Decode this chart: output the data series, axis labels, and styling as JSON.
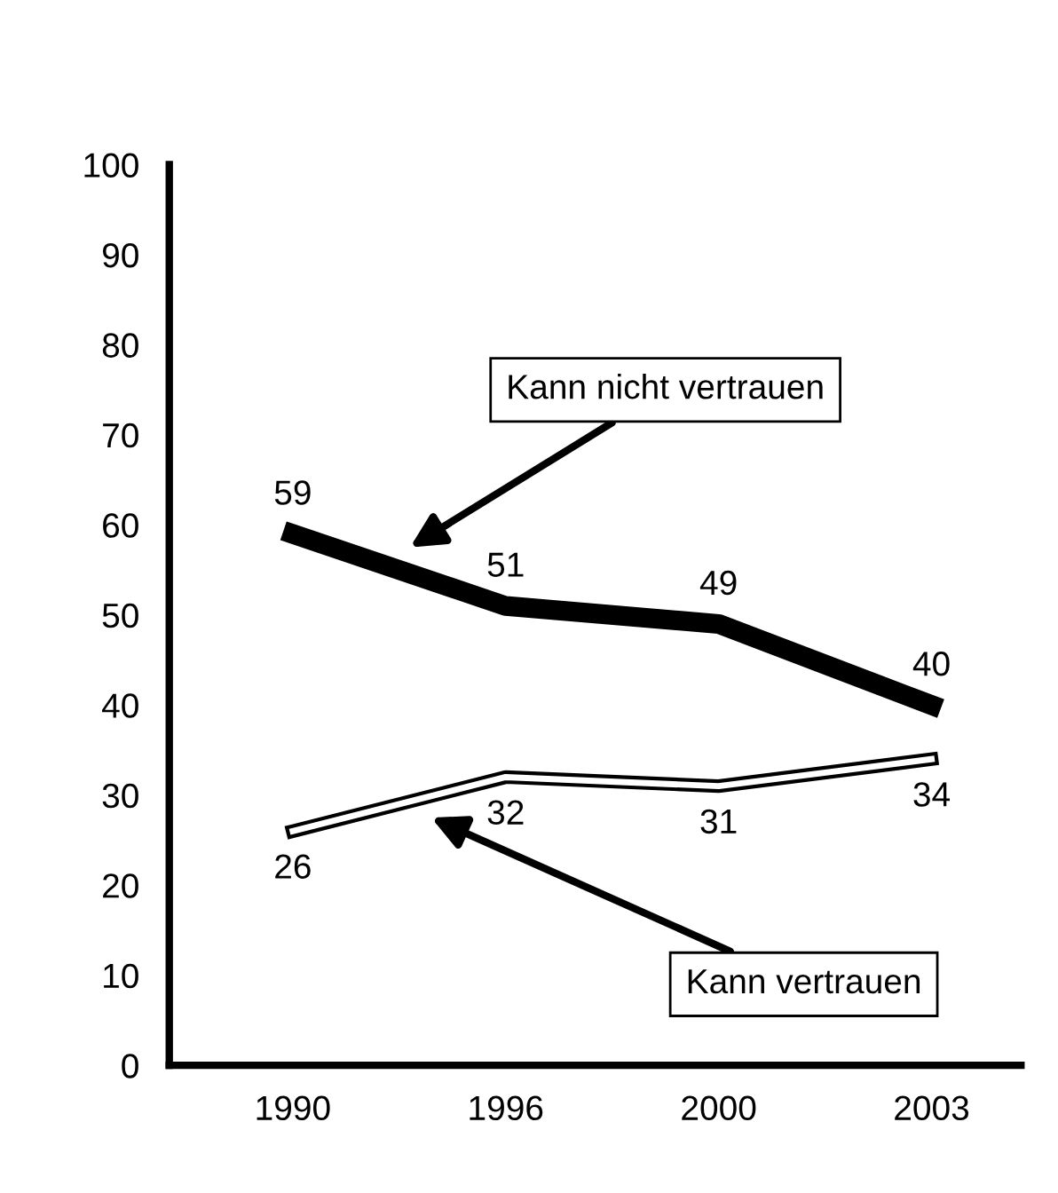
{
  "chart_data": {
    "type": "line",
    "categories": [
      "1990",
      "1996",
      "2000",
      "2003"
    ],
    "series": [
      {
        "name": "Kann nicht vertrauen",
        "color": "#000000",
        "values": [
          59,
          51,
          49,
          40
        ]
      },
      {
        "name": "Kann vertrauen",
        "color": "#ffffff",
        "values": [
          26,
          32,
          31,
          34
        ]
      }
    ],
    "ylim": [
      0,
      100
    ],
    "yticks": [
      0,
      10,
      20,
      30,
      40,
      50,
      60,
      70,
      80,
      90,
      100
    ],
    "data_labels": true,
    "grid": false,
    "legend": false,
    "marker": "none",
    "line_style": "solid"
  }
}
